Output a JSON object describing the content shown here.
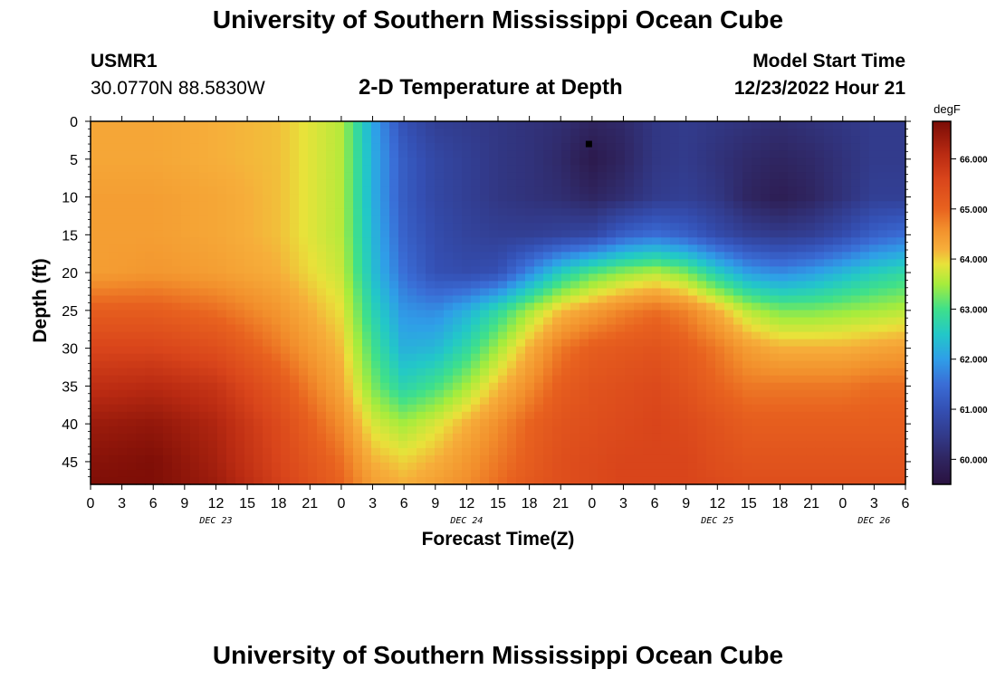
{
  "header": {
    "title": "University of Southern Mississippi Ocean Cube",
    "station": "USMR1",
    "coords": "30.0770N  88.5830W",
    "plot_title": "2-D Temperature at Depth",
    "model_label": "Model Start Time",
    "model_time": "12/23/2022 Hour 21"
  },
  "footer": {
    "title": "University of Southern Mississippi Ocean Cube"
  },
  "colors": {
    "marker": "#000000",
    "axis": "#000000"
  },
  "chart_data": {
    "type": "heatmap",
    "title": "2-D Temperature at Depth",
    "xlabel": "Forecast Time(Z)",
    "ylabel": "Depth (ft)",
    "units": "degF",
    "x_hours": [
      0,
      6,
      12,
      18,
      24,
      27,
      30,
      33,
      36,
      39,
      42,
      45,
      48,
      51,
      54,
      57,
      60,
      63,
      66,
      69,
      72,
      75,
      78
    ],
    "depths": [
      0,
      5,
      10,
      15,
      20,
      25,
      30,
      35,
      40,
      45,
      48
    ],
    "values": [
      [
        64.3,
        64.3,
        64.2,
        64.1,
        63.6,
        62.1,
        61.0,
        60.6,
        60.5,
        60.4,
        60.3,
        60.2,
        60.0,
        60.1,
        60.4,
        60.5,
        60.4,
        60.3,
        60.2,
        60.3,
        60.4,
        60.5,
        60.5
      ],
      [
        64.3,
        64.3,
        64.2,
        64.1,
        63.6,
        62.2,
        61.2,
        60.8,
        60.6,
        60.4,
        60.3,
        60.1,
        59.7,
        60.0,
        60.4,
        60.5,
        60.3,
        60.1,
        60.0,
        60.1,
        60.3,
        60.5,
        60.5
      ],
      [
        64.4,
        64.4,
        64.3,
        64.1,
        63.6,
        62.2,
        61.2,
        60.8,
        60.6,
        60.4,
        60.3,
        60.2,
        60.0,
        60.2,
        60.5,
        60.6,
        60.4,
        60.0,
        59.8,
        60.0,
        60.3,
        60.6,
        60.6
      ],
      [
        64.4,
        64.4,
        64.3,
        64.1,
        63.6,
        62.3,
        61.3,
        60.9,
        60.7,
        60.6,
        60.6,
        60.7,
        60.8,
        61.3,
        61.5,
        61.3,
        60.9,
        60.6,
        60.5,
        60.6,
        60.9,
        61.3,
        61.5
      ],
      [
        64.4,
        64.5,
        64.4,
        64.2,
        63.7,
        62.4,
        61.5,
        61.0,
        60.9,
        61.0,
        61.8,
        62.6,
        63.1,
        63.4,
        63.6,
        63.3,
        62.6,
        62.0,
        61.8,
        62.0,
        62.3,
        62.6,
        62.8
      ],
      [
        65.1,
        65.1,
        64.9,
        64.5,
        63.9,
        62.7,
        61.9,
        61.8,
        62.2,
        62.8,
        63.5,
        64.1,
        64.4,
        64.7,
        64.9,
        64.7,
        64.2,
        63.6,
        63.3,
        63.3,
        63.4,
        63.5,
        63.6
      ],
      [
        65.6,
        65.6,
        65.4,
        64.8,
        64.1,
        63.0,
        62.2,
        62.3,
        62.8,
        63.5,
        64.2,
        64.8,
        65.1,
        65.2,
        65.3,
        65.1,
        64.8,
        64.4,
        64.2,
        64.2,
        64.2,
        64.3,
        64.4
      ],
      [
        66.0,
        66.1,
        65.9,
        65.2,
        64.3,
        63.3,
        62.7,
        63.0,
        63.5,
        64.1,
        64.6,
        65.1,
        65.3,
        65.4,
        65.5,
        65.3,
        65.0,
        64.8,
        64.8,
        64.8,
        64.8,
        64.9,
        64.9
      ],
      [
        66.4,
        66.5,
        66.2,
        65.5,
        64.6,
        63.8,
        63.5,
        63.8,
        64.2,
        64.6,
        65.0,
        65.3,
        65.4,
        65.5,
        65.6,
        65.5,
        65.3,
        65.1,
        65.1,
        65.1,
        65.1,
        65.1,
        65.1
      ],
      [
        66.6,
        66.7,
        66.3,
        65.6,
        64.9,
        64.2,
        64.0,
        64.2,
        64.5,
        64.8,
        65.1,
        65.4,
        65.5,
        65.6,
        65.6,
        65.6,
        65.4,
        65.3,
        65.3,
        65.3,
        65.3,
        65.3,
        65.3
      ],
      [
        66.7,
        66.7,
        66.4,
        65.7,
        65.0,
        64.4,
        64.2,
        64.4,
        64.6,
        64.9,
        65.2,
        65.4,
        65.5,
        65.6,
        65.6,
        65.6,
        65.5,
        65.4,
        65.4,
        65.4,
        65.4,
        65.4,
        65.4
      ]
    ],
    "x_ticks": [
      "0",
      "3",
      "6",
      "9",
      "12",
      "15",
      "18",
      "21",
      "0",
      "3",
      "6",
      "9",
      "12",
      "15",
      "18",
      "21",
      "0",
      "3",
      "6",
      "9",
      "12",
      "15",
      "18",
      "21",
      "0",
      "3",
      "6"
    ],
    "x_tick_hours": [
      0,
      3,
      6,
      9,
      12,
      15,
      18,
      21,
      24,
      27,
      30,
      33,
      36,
      39,
      42,
      45,
      48,
      51,
      54,
      57,
      60,
      63,
      66,
      69,
      72,
      75,
      78
    ],
    "date_labels": [
      "DEC 23",
      "DEC 24",
      "DEC 25",
      "DEC 26"
    ],
    "date_label_hours": [
      12,
      36,
      60,
      75
    ],
    "xlim": [
      0,
      78
    ],
    "y_ticks": [
      "0",
      "5",
      "10",
      "15",
      "20",
      "25",
      "30",
      "35",
      "40",
      "45"
    ],
    "y_tick_values": [
      0,
      5,
      10,
      15,
      20,
      25,
      30,
      35,
      40,
      45
    ],
    "ylim": [
      0,
      48
    ],
    "colorbar": {
      "label": "degF",
      "ticks": [
        "66.000",
        "65.000",
        "64.000",
        "63.000",
        "62.000",
        "61.000",
        "60.000"
      ],
      "tick_values": [
        66,
        65,
        64,
        63,
        62,
        61,
        60
      ],
      "range": [
        59.5,
        66.75
      ],
      "stops": [
        {
          "v": 59.5,
          "c": "#2a1240"
        },
        {
          "v": 60.0,
          "c": "#2f2560"
        },
        {
          "v": 60.5,
          "c": "#323b8c"
        },
        {
          "v": 61.0,
          "c": "#3450b4"
        },
        {
          "v": 61.5,
          "c": "#3a6dd6"
        },
        {
          "v": 62.0,
          "c": "#2f9ee8"
        },
        {
          "v": 62.5,
          "c": "#22c8c8"
        },
        {
          "v": 63.0,
          "c": "#3fe08a"
        },
        {
          "v": 63.5,
          "c": "#a6ec3c"
        },
        {
          "v": 63.9,
          "c": "#e8e23a"
        },
        {
          "v": 64.2,
          "c": "#f6ae3a"
        },
        {
          "v": 64.6,
          "c": "#f28f2c"
        },
        {
          "v": 65.0,
          "c": "#e8621f"
        },
        {
          "v": 65.6,
          "c": "#d9451b"
        },
        {
          "v": 66.1,
          "c": "#b92a12"
        },
        {
          "v": 66.75,
          "c": "#7a0c06"
        }
      ]
    },
    "marker": {
      "hour": 47.7,
      "depth": 3
    }
  }
}
